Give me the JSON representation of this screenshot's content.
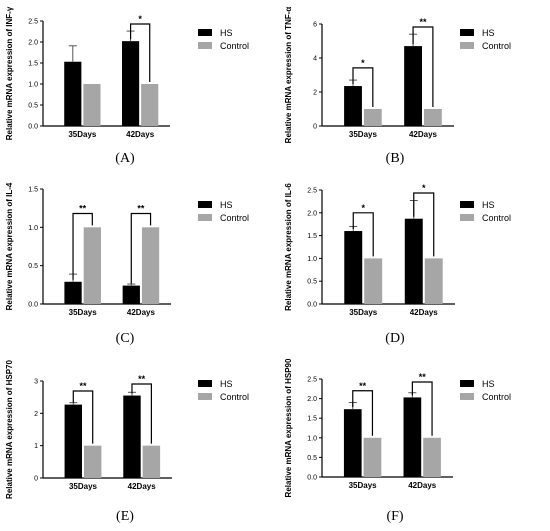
{
  "chart_data": [
    {
      "type": "bar",
      "panel_label": "(A)",
      "ylabel": "Relative mRNA expression of INF-γ",
      "categories": [
        "35Days",
        "42Days"
      ],
      "ylim": [
        0,
        2.5
      ],
      "yticks": [
        "0.0",
        "0.5",
        "1.0",
        "1.5",
        "2.0",
        "2.5"
      ],
      "series": [
        {
          "name": "HS",
          "color": "#000000",
          "values": [
            1.53,
            2.02
          ],
          "errors": [
            0.38,
            0.24
          ]
        },
        {
          "name": "Control",
          "color": "#a6a6a6",
          "values": [
            1.0,
            1.0
          ],
          "errors": [
            0,
            0
          ]
        }
      ],
      "significance": [
        "",
        "*"
      ]
    },
    {
      "type": "bar",
      "panel_label": "(B)",
      "ylabel": "Relative mRNA expression of TNF-α",
      "categories": [
        "35Days",
        "42Days"
      ],
      "ylim": [
        0,
        6
      ],
      "yticks": [
        "0",
        "2",
        "4",
        "6"
      ],
      "series": [
        {
          "name": "HS",
          "color": "#000000",
          "values": [
            2.35,
            4.7
          ],
          "errors": [
            0.35,
            0.7
          ]
        },
        {
          "name": "Control",
          "color": "#a6a6a6",
          "values": [
            1.0,
            1.0
          ],
          "errors": [
            0,
            0
          ]
        }
      ],
      "significance": [
        "*",
        "**"
      ]
    },
    {
      "type": "bar",
      "panel_label": "(C)",
      "ylabel": "Relative mRNA expression of  IL-4",
      "categories": [
        "35Days",
        "42Days"
      ],
      "ylim": [
        0,
        1.5
      ],
      "yticks": [
        "0.0",
        "0.5",
        "1.0",
        "1.5"
      ],
      "series": [
        {
          "name": "HS",
          "color": "#000000",
          "values": [
            0.29,
            0.24
          ],
          "errors": [
            0.1,
            0.02
          ]
        },
        {
          "name": "Control",
          "color": "#a6a6a6",
          "values": [
            1.0,
            1.0
          ],
          "errors": [
            0,
            0
          ]
        }
      ],
      "significance": [
        "**",
        "**"
      ]
    },
    {
      "type": "bar",
      "panel_label": "(D)",
      "ylabel": "Relative mRNA expression of IL-6",
      "categories": [
        "35Days",
        "42Days"
      ],
      "ylim": [
        0,
        2.5
      ],
      "yticks": [
        "0.0",
        "0.5",
        "1.0",
        "1.5",
        "2.0",
        "2.5"
      ],
      "series": [
        {
          "name": "HS",
          "color": "#000000",
          "values": [
            1.6,
            1.87
          ],
          "errors": [
            0.1,
            0.4
          ]
        },
        {
          "name": "Control",
          "color": "#a6a6a6",
          "values": [
            1.0,
            1.0
          ],
          "errors": [
            0,
            0
          ]
        }
      ],
      "significance": [
        "*",
        "*"
      ]
    },
    {
      "type": "bar",
      "panel_label": "(E)",
      "ylabel": "Relative mRNA expression of  HSP70",
      "categories": [
        "35Days",
        "42Days"
      ],
      "ylim": [
        0,
        3
      ],
      "yticks": [
        "0",
        "1",
        "2",
        "3"
      ],
      "series": [
        {
          "name": "HS",
          "color": "#000000",
          "values": [
            2.27,
            2.55
          ],
          "errors": [
            0.06,
            0.1
          ]
        },
        {
          "name": "Control",
          "color": "#a6a6a6",
          "values": [
            1.0,
            1.0
          ],
          "errors": [
            0,
            0
          ]
        }
      ],
      "significance": [
        "**",
        "**"
      ]
    },
    {
      "type": "bar",
      "panel_label": "(F)",
      "ylabel": "Relative mRNA expression of  HSP90",
      "categories": [
        "35Days",
        "42Days"
      ],
      "ylim": [
        0,
        2.5
      ],
      "yticks": [
        "0.0",
        "0.5",
        "1.0",
        "1.5",
        "2.0",
        "2.5"
      ],
      "series": [
        {
          "name": "HS",
          "color": "#000000",
          "values": [
            1.73,
            2.03
          ],
          "errors": [
            0.17,
            0.12
          ]
        },
        {
          "name": "Control",
          "color": "#a6a6a6",
          "values": [
            1.0,
            1.0
          ],
          "errors": [
            0,
            0
          ]
        }
      ],
      "significance": [
        "**",
        "**"
      ]
    }
  ]
}
